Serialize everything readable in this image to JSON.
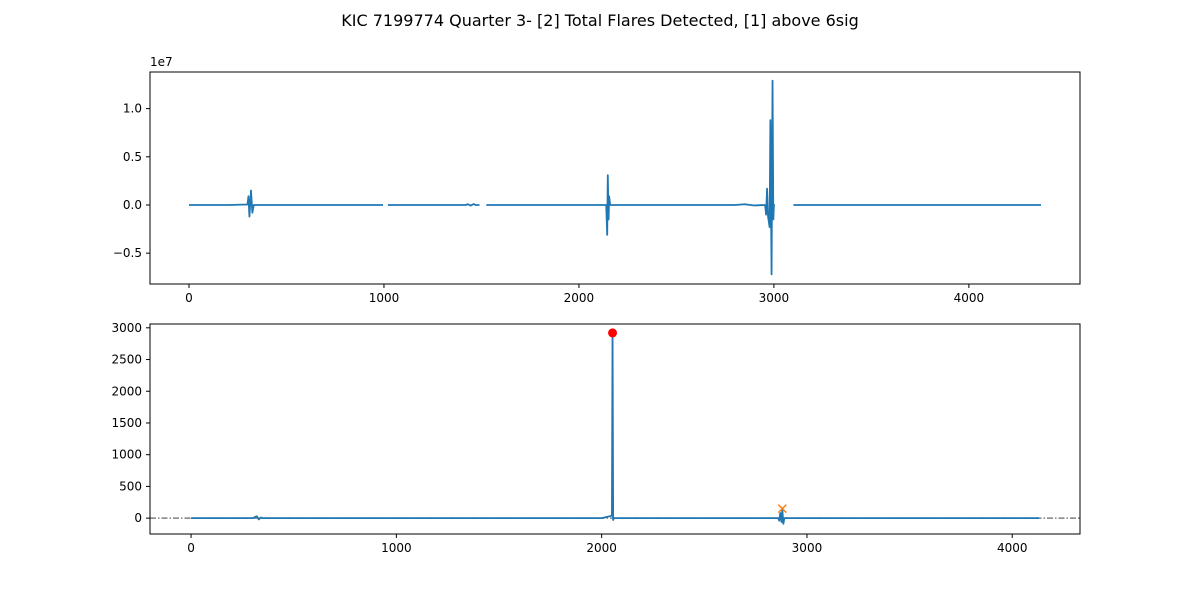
{
  "figure": {
    "title": "KIC 7199774 Quarter 3- [2] Total Flares Detected, [1] above 6sig"
  },
  "chart_data": [
    {
      "type": "line",
      "panel": "top",
      "offset_label": "1e7",
      "ylabel": "",
      "xlabel": "",
      "xlim": [
        -200,
        4570
      ],
      "ylim": [
        -8200000.0,
        13800000.0
      ],
      "x_ticks": [
        0,
        1000,
        2000,
        3000,
        4000
      ],
      "x_tick_labels": [
        "0",
        "1000",
        "2000",
        "3000",
        "4000"
      ],
      "y_ticks": [
        -5000000,
        0,
        5000000,
        10000000
      ],
      "y_tick_labels": [
        "−0.5",
        "0.0",
        "0.5",
        "1.0"
      ],
      "grid": false,
      "series": [
        {
          "color": "#1f77b4",
          "segments": [
            [
              [
                0,
                0
              ],
              [
                200,
                0
              ],
              [
                300,
                50000
              ],
              [
                305,
                900000
              ],
              [
                310,
                -1200000
              ],
              [
                318,
                1500000
              ],
              [
                325,
                -800000
              ],
              [
                332,
                0
              ],
              [
                340,
                0
              ],
              [
                500,
                0
              ],
              [
                700,
                0
              ],
              [
                995,
                0
              ]
            ],
            [
              [
                1020,
                0
              ],
              [
                1200,
                0
              ],
              [
                1420,
                0
              ],
              [
                1430,
                80000
              ],
              [
                1445,
                -60000
              ],
              [
                1460,
                100000
              ],
              [
                1470,
                0
              ],
              [
                1490,
                0
              ]
            ],
            [
              [
                1525,
                0
              ],
              [
                1800,
                0
              ],
              [
                2140,
                0
              ],
              [
                2145,
                -3100000
              ],
              [
                2148,
                3100000
              ],
              [
                2152,
                -1500000
              ],
              [
                2155,
                900000
              ],
              [
                2160,
                0
              ],
              [
                2300,
                0
              ],
              [
                2800,
                0
              ],
              [
                2850,
                80000
              ],
              [
                2900,
                -50000
              ],
              [
                2955,
                0
              ],
              [
                2960,
                -1000000
              ],
              [
                2965,
                1700000
              ],
              [
                2970,
                -1200000
              ],
              [
                2978,
                -2300000
              ],
              [
                2982,
                8800000
              ],
              [
                2988,
                -7200000
              ],
              [
                2993,
                12900000
              ],
              [
                2997,
                -1500000
              ],
              [
                3000,
                0
              ],
              [
                3005,
                0
              ]
            ],
            [
              [
                3100,
                0
              ],
              [
                3500,
                0
              ],
              [
                4000,
                0
              ],
              [
                4370,
                0
              ]
            ]
          ]
        }
      ]
    },
    {
      "type": "line",
      "panel": "bottom",
      "ylabel": "",
      "xlabel": "",
      "xlim": [
        -200,
        4330
      ],
      "ylim": [
        -250,
        3060
      ],
      "x_ticks": [
        0,
        1000,
        2000,
        3000,
        4000
      ],
      "x_tick_labels": [
        "0",
        "1000",
        "2000",
        "3000",
        "4000"
      ],
      "y_ticks": [
        0,
        500,
        1000,
        1500,
        2000,
        2500,
        3000
      ],
      "y_tick_labels": [
        "0",
        "500",
        "1000",
        "1500",
        "2000",
        "2500",
        "3000"
      ],
      "grid": false,
      "threshold_lines": [
        {
          "y": 0,
          "color": "#808080",
          "style": "dashdot"
        }
      ],
      "series": [
        {
          "color": "#1f77b4",
          "points": [
            [
              0,
              0
            ],
            [
              300,
              0
            ],
            [
              320,
              30
            ],
            [
              330,
              -20
            ],
            [
              340,
              10
            ],
            [
              350,
              0
            ],
            [
              1000,
              0
            ],
            [
              1500,
              0
            ],
            [
              2000,
              0
            ],
            [
              2040,
              30
            ],
            [
              2050,
              40
            ],
            [
              2053,
              2920
            ],
            [
              2056,
              -30
            ],
            [
              2060,
              0
            ],
            [
              2300,
              0
            ],
            [
              2860,
              0
            ],
            [
              2865,
              -40
            ],
            [
              2870,
              80
            ],
            [
              2876,
              -60
            ],
            [
              2880,
              140
            ],
            [
              2885,
              -90
            ],
            [
              2890,
              0
            ],
            [
              3500,
              0
            ],
            [
              4130,
              0
            ]
          ]
        }
      ],
      "markers": [
        {
          "x": 2053,
          "y": 2920,
          "shape": "circle",
          "color": "#ff0000"
        },
        {
          "x": 2880,
          "y": 150,
          "shape": "x",
          "color": "#ff7f0e"
        }
      ]
    }
  ]
}
